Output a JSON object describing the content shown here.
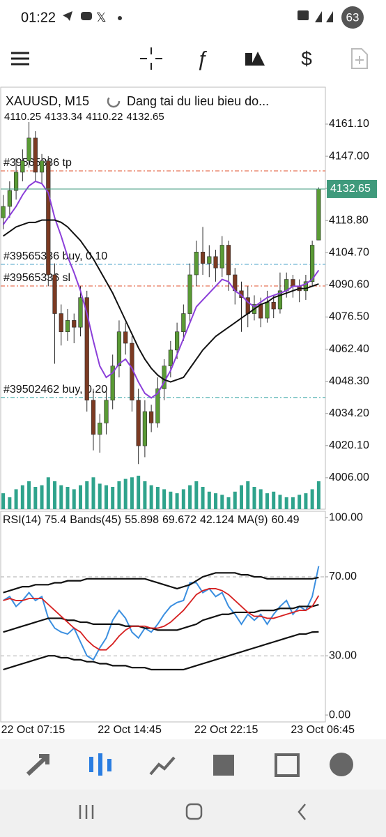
{
  "status_bar": {
    "time": "01:22",
    "battery": "63"
  },
  "chart_data": [
    {
      "type": "candlestick",
      "title": "XAUUSD, M15",
      "subtitle": "Dang tai du lieu bieu do...",
      "categories": [
        "22 Oct 07:15",
        null,
        null,
        null,
        null,
        null,
        null,
        null,
        null,
        null,
        null,
        null,
        null,
        null,
        null,
        "22 Oct 14:45",
        null,
        null,
        null,
        null,
        null,
        null,
        null,
        null,
        null,
        null,
        null,
        null,
        null,
        null,
        "22 Oct 22:15",
        null,
        null,
        null,
        null,
        null,
        null,
        null,
        null,
        null,
        null,
        null,
        null,
        null,
        null,
        "23 Oct 06:45",
        null,
        null,
        null,
        null
      ],
      "open": [
        4120,
        4125,
        4132,
        4140,
        4145,
        4155,
        4140,
        4145,
        4095,
        4078,
        4070,
        4075,
        4072,
        4085,
        4040,
        4025,
        4030,
        4040,
        4055,
        4070,
        4065,
        4040,
        4020,
        4035,
        4030,
        4045,
        4055,
        4062,
        4070,
        4078,
        4095,
        4105,
        4100,
        4103,
        4098,
        4108,
        4095,
        4088,
        4085,
        4078,
        4082,
        4076,
        4083,
        4080,
        4088,
        4093,
        4090,
        4088,
        4092,
        4110.25
      ],
      "high": [
        4130,
        4136,
        4146,
        4150,
        4162,
        4158,
        4148,
        4147,
        4100,
        4082,
        4080,
        4078,
        4090,
        4088,
        4045,
        4034,
        4044,
        4060,
        4075,
        4074,
        4068,
        4045,
        4040,
        4038,
        4050,
        4058,
        4066,
        4074,
        4082,
        4100,
        4110,
        4116,
        4108,
        4106,
        4112,
        4110,
        4098,
        4092,
        4090,
        4086,
        4085,
        4088,
        4086,
        4096,
        4096,
        4095,
        4093,
        4095,
        4110,
        4133.34
      ],
      "low": [
        4115,
        4120,
        4128,
        4136,
        4142,
        4136,
        4135,
        4090,
        4056,
        4064,
        4066,
        4065,
        4068,
        4035,
        4018,
        4017,
        4025,
        4036,
        4050,
        4060,
        4035,
        4012,
        4015,
        4026,
        4028,
        4040,
        4050,
        4058,
        4066,
        4074,
        4090,
        4095,
        4094,
        4092,
        4094,
        4088,
        4082,
        4070,
        4072,
        4075,
        4072,
        4074,
        4076,
        4078,
        4085,
        4085,
        4083,
        4084,
        4090,
        4110.22
      ],
      "close": [
        4125,
        4132,
        4140,
        4145,
        4155,
        4140,
        4145,
        4095,
        4078,
        4070,
        4075,
        4072,
        4085,
        4040,
        4025,
        4030,
        4040,
        4055,
        4070,
        4065,
        4040,
        4020,
        4035,
        4030,
        4045,
        4055,
        4062,
        4070,
        4078,
        4095,
        4105,
        4100,
        4103,
        4098,
        4108,
        4095,
        4088,
        4085,
        4078,
        4082,
        4076,
        4083,
        4080,
        4088,
        4093,
        4090,
        4088,
        4092,
        4108,
        4132.65
      ],
      "up_color": "#5a9b35",
      "down_color": "#7b3a22",
      "price_color": "#3f9a7c",
      "volume": [
        20,
        15,
        25,
        30,
        35,
        28,
        30,
        40,
        35,
        30,
        28,
        25,
        30,
        35,
        40,
        32,
        30,
        28,
        35,
        38,
        40,
        42,
        35,
        30,
        28,
        25,
        22,
        20,
        25,
        30,
        35,
        28,
        22,
        20,
        18,
        15,
        22,
        30,
        35,
        28,
        25,
        20,
        22,
        18,
        15,
        15,
        18,
        20,
        25,
        35
      ],
      "volume_color": "#2fa38c",
      "series": [
        {
          "color": "#8b3fd9",
          "values": [
            4117,
            4121,
            4125,
            4130,
            4134,
            4136,
            4135,
            4131,
            4120,
            4112,
            4103,
            4096,
            4088,
            4078,
            4066,
            4055,
            4050,
            4052,
            4056,
            4058,
            4054,
            4048,
            4043,
            4041,
            4043,
            4048,
            4053,
            4060,
            4067,
            4074,
            4081,
            4084,
            4087,
            4090,
            4093,
            4092,
            4088,
            4086,
            4083,
            4081,
            4083,
            4085,
            4086,
            4087,
            4088,
            4090,
            4090,
            4091,
            4093,
            4097
          ]
        },
        {
          "color": "#111111",
          "values": [
            4112,
            4114,
            4116,
            4117,
            4118,
            4118,
            4119,
            4119,
            4119,
            4118,
            4116,
            4113,
            4110,
            4106,
            4102,
            4097,
            4092,
            4087,
            4081,
            4075,
            4069,
            4063,
            4058,
            4054,
            4051,
            4049,
            4048,
            4049,
            4050,
            4054,
            4058,
            4062,
            4065,
            4068,
            4070,
            4072,
            4074,
            4076,
            4078,
            4080,
            4082,
            4083,
            4085,
            4086,
            4087,
            4088,
            4089,
            4089,
            4090,
            4091
          ]
        }
      ],
      "levels": [
        {
          "label": "#39565336 tp",
          "value": 4140.6,
          "color": "#e0522e"
        },
        {
          "label": "#39565336 buy, 0.10",
          "value": 4099.6,
          "color": "#4aa3c8"
        },
        {
          "label": "#39565336 sl",
          "value": 4090.1,
          "color": "#e0522e"
        },
        {
          "label": "#39502462 buy, 0.20",
          "value": 4041.2,
          "color": "#2aa0a0"
        }
      ],
      "ylim": [
        3992.2,
        4177.3
      ],
      "yticks": [
        {
          "value": 4161.1,
          "label": "4161.10"
        },
        {
          "value": 4147,
          "label": "4147.00"
        },
        {
          "value": 4132.9,
          "label": "4132.90"
        },
        {
          "value": 4118.8,
          "label": "4118.80"
        },
        {
          "value": 4104.7,
          "label": "4104.70"
        },
        {
          "value": 4090.6,
          "label": "4090.60"
        },
        {
          "value": 4076.5,
          "label": "4076.50"
        },
        {
          "value": 4062.4,
          "label": "4062.40"
        },
        {
          "value": 4048.3,
          "label": "4048.30"
        },
        {
          "value": 4034.2,
          "label": "4034.20"
        },
        {
          "value": 4020.1,
          "label": "4020.10"
        },
        {
          "value": 4006,
          "label": "4006.00"
        }
      ]
    },
    {
      "type": "line",
      "series": [
        {
          "name": "RSI(14)",
          "color": "#3b8fe0",
          "values": [
            58,
            60,
            55,
            58,
            62,
            58,
            60,
            49,
            44,
            42,
            41,
            44,
            37,
            30,
            28,
            34,
            39,
            48,
            53,
            49,
            42,
            39,
            44,
            42,
            46,
            51,
            55,
            57,
            58,
            67,
            67,
            62,
            64,
            60,
            62,
            55,
            51,
            46,
            51,
            48,
            51,
            46,
            51,
            55,
            58,
            51,
            55,
            53,
            60,
            75.4
          ]
        },
        {
          "name": "Bands(45)",
          "color": "#111111",
          "middle": [
            42,
            43,
            44,
            45,
            46,
            47,
            48,
            49,
            49,
            49,
            48,
            48,
            47,
            47,
            46,
            46,
            46,
            46,
            46,
            45,
            45,
            45,
            44,
            44,
            43,
            43,
            43,
            43,
            44,
            45,
            46,
            48,
            49,
            50,
            51,
            51,
            52,
            52,
            52,
            52,
            53,
            53,
            53,
            54,
            54,
            54,
            55,
            55,
            55,
            55.898
          ],
          "upper": [
            62,
            63,
            64,
            65,
            65,
            66,
            66,
            66,
            67,
            67,
            68,
            68,
            68,
            69,
            69,
            69,
            69,
            69,
            69,
            69,
            69,
            69,
            69,
            68,
            67,
            66,
            65,
            64,
            65,
            66,
            68,
            70,
            71,
            72,
            72,
            72,
            72,
            71,
            71,
            70,
            70,
            69,
            69,
            69,
            69,
            69,
            69,
            69,
            69,
            69.672
          ],
          "lower": [
            23,
            24,
            25,
            26,
            27,
            28,
            29,
            30,
            30,
            29,
            29,
            28,
            28,
            27,
            27,
            26,
            26,
            25,
            25,
            25,
            24,
            24,
            24,
            23,
            23,
            23,
            23,
            23,
            23,
            24,
            25,
            26,
            27,
            28,
            29,
            30,
            31,
            32,
            33,
            34,
            35,
            36,
            37,
            38,
            39,
            40,
            41,
            41,
            42,
            42.124
          ]
        },
        {
          "name": "MA(9)",
          "color": "#d62020",
          "values": [
            58,
            59,
            58,
            58,
            59,
            59,
            59,
            56,
            53,
            50,
            47,
            44,
            42,
            38,
            35,
            33,
            33,
            36,
            40,
            43,
            45,
            45,
            45,
            44,
            44,
            45,
            47,
            50,
            53,
            57,
            61,
            63,
            64,
            64,
            63,
            61,
            58,
            55,
            52,
            50,
            50,
            49,
            49,
            50,
            51,
            52,
            53,
            53,
            55,
            60.49
          ]
        }
      ],
      "levels": [
        70,
        30
      ],
      "ylim": [
        -3.5,
        102.5
      ],
      "yticks": [
        {
          "value": 100,
          "label": "100.00"
        },
        {
          "value": 70,
          "label": "70.00"
        },
        {
          "value": 30,
          "label": "30.00"
        },
        {
          "value": 0,
          "label": "0.00"
        }
      ]
    }
  ]
}
